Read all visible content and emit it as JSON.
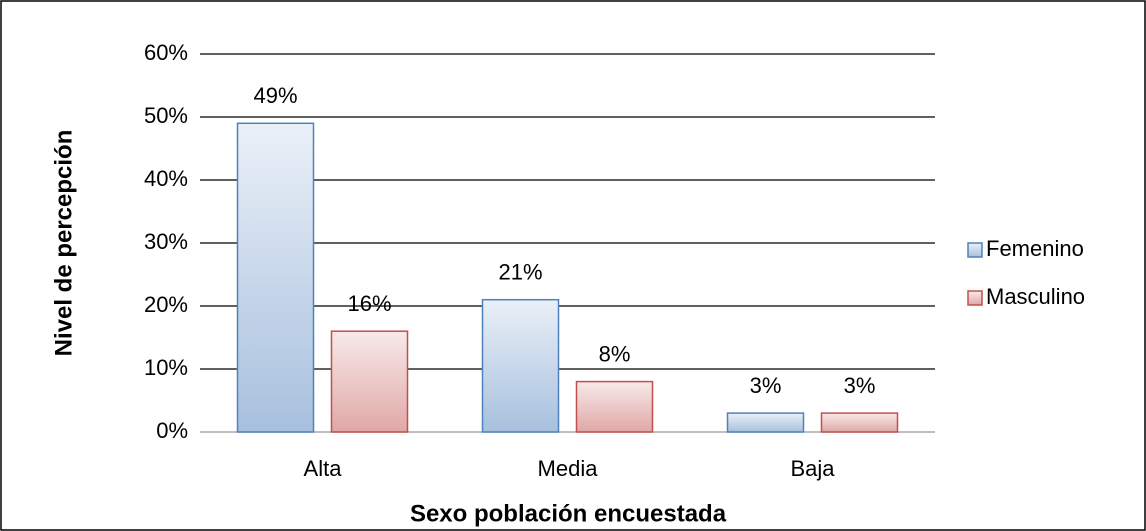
{
  "chart_data": {
    "type": "bar",
    "x_label": "Sexo población encuestada",
    "y_label": "Nivel de percepción",
    "categories": [
      "Alta",
      "Media",
      "Baja"
    ],
    "series": [
      {
        "name": "Femenino",
        "color": "#4f81bd",
        "values": [
          49,
          21,
          3
        ],
        "value_labels": [
          "49%",
          "21%",
          "3%"
        ]
      },
      {
        "name": "Masculino",
        "color": "#c0504d",
        "values": [
          16,
          8,
          3
        ],
        "value_labels": [
          "16%",
          "8%",
          "3%"
        ]
      }
    ],
    "ylim": [
      0,
      60
    ],
    "yticks": [
      {
        "value": 0,
        "label": "0%"
      },
      {
        "value": 10,
        "label": "10%"
      },
      {
        "value": 20,
        "label": "20%"
      },
      {
        "value": 30,
        "label": "30%"
      },
      {
        "value": 40,
        "label": "40%"
      },
      {
        "value": 50,
        "label": "50%"
      },
      {
        "value": 60,
        "label": "60%"
      }
    ],
    "grid": true,
    "legend": "right"
  }
}
